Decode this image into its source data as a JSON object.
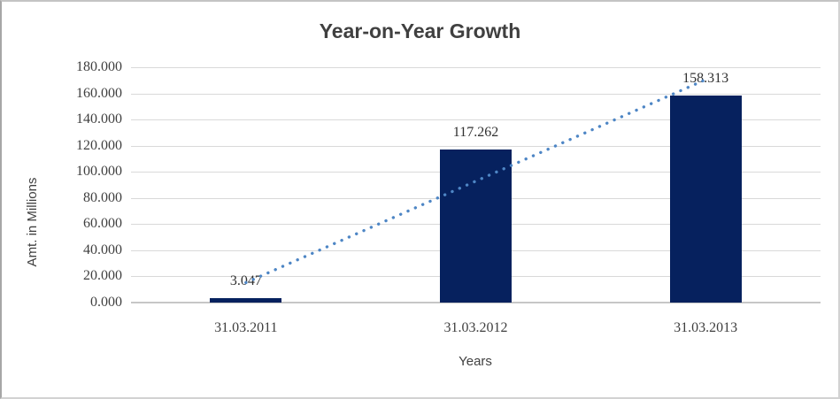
{
  "chart_data": {
    "type": "bar",
    "title": "Year-on-Year Growth",
    "categories": [
      "31.03.2011",
      "31.03.2012",
      "31.03.2013"
    ],
    "values": [
      3.047,
      117.262,
      158.313
    ],
    "value_labels": [
      "3.047",
      "117.262",
      "158.313"
    ],
    "xlabel": "Years",
    "ylabel": "Amt. in Millions",
    "ylim": [
      0,
      180
    ],
    "ytick_interval": 20,
    "ytick_labels": [
      "0.000",
      "20.000",
      "40.000",
      "60.000",
      "80.000",
      "100.000",
      "120.000",
      "140.000",
      "160.000",
      "180.000"
    ],
    "grid": true,
    "legend": "none",
    "trendline": {
      "type": "linear",
      "style": "dotted"
    },
    "colors": {
      "bar": "#06215E",
      "trendline": "#4E86C5",
      "gridline": "#D9D9D9",
      "axis_line": "#C6C6C6",
      "text": "#3F3F3F",
      "background": "#FFFFFF",
      "border": "#D2D2D2"
    }
  }
}
